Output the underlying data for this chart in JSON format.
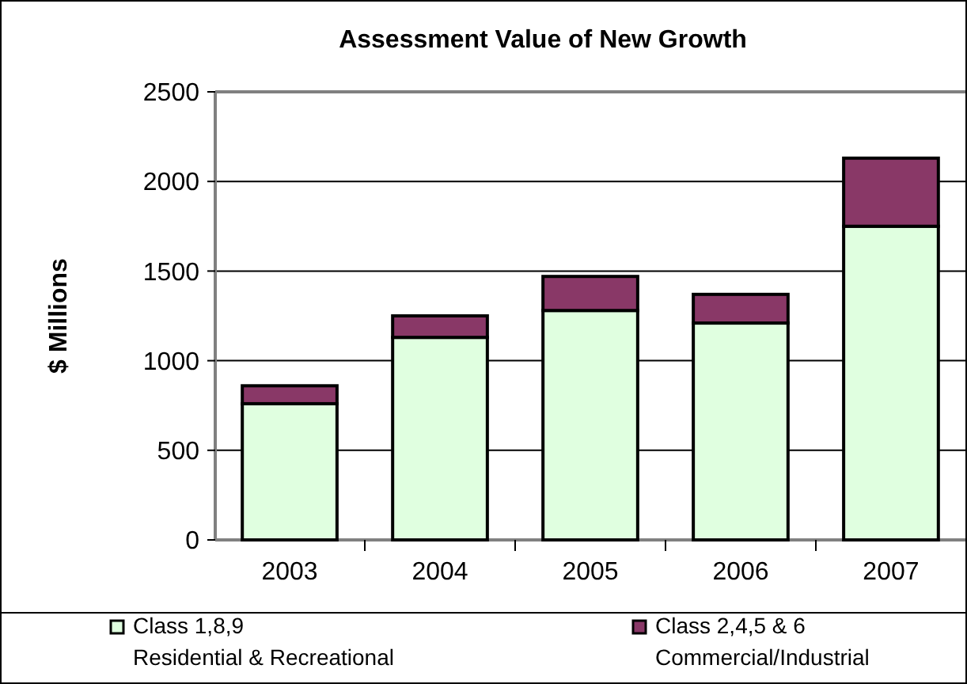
{
  "chart_data": {
    "type": "bar",
    "title": "Assessment Value of New Growth",
    "ylabel": "$ Millions",
    "categories": [
      "2003",
      "2004",
      "2005",
      "2006",
      "2007"
    ],
    "stacked": true,
    "series": [
      {
        "name": "Class 1,8,9\nResidential & Recreational",
        "color": "#e0ffe0",
        "values": [
          760,
          1130,
          1280,
          1210,
          1750
        ]
      },
      {
        "name": "Class 2,4,5 & 6\nCommercial/Industrial",
        "color": "#893867",
        "values": [
          100,
          120,
          190,
          160,
          380
        ]
      }
    ],
    "ylim": [
      0,
      2500
    ],
    "yticks": [
      0,
      500,
      1000,
      1500,
      2000,
      2500
    ],
    "grid": "y",
    "legend": "bottom"
  }
}
